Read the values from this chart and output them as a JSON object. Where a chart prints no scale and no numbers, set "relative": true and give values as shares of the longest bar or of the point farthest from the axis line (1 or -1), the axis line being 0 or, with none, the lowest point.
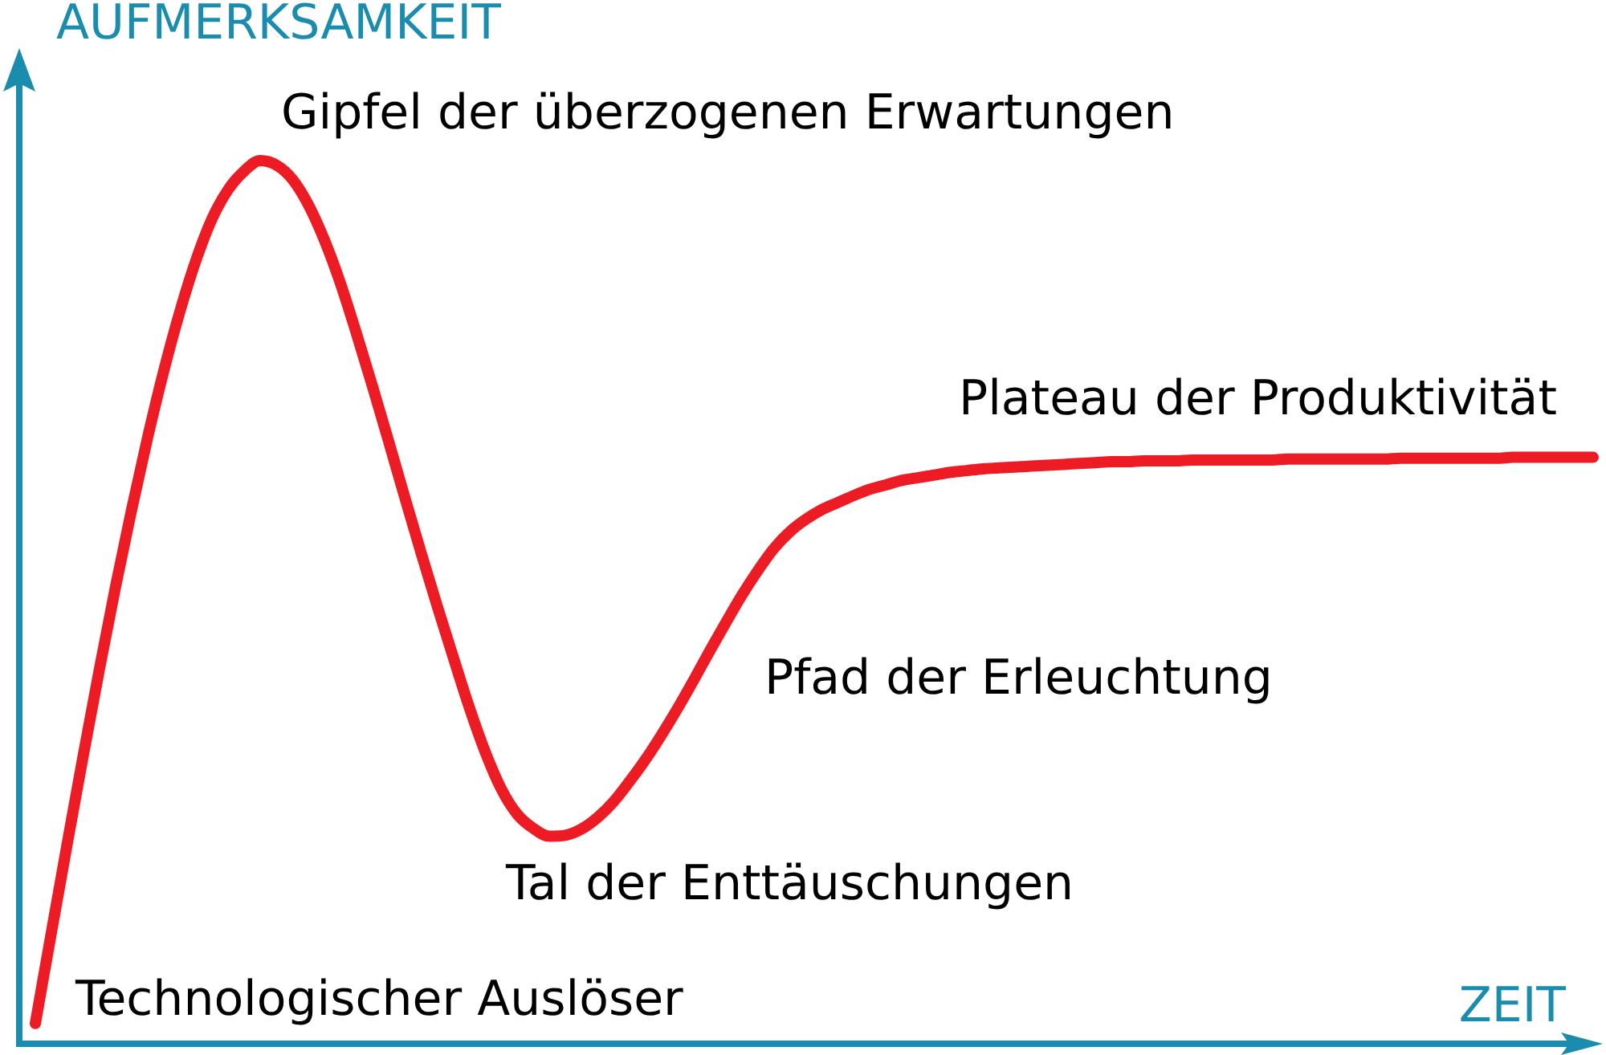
{
  "chart_data": {
    "type": "line",
    "relative": true,
    "xlabel": "ZEIT",
    "ylabel": "AUFMERKSAMKEIT",
    "annotations": [
      "Technologischer Auslöser",
      "Gipfel der überzogenen Erwartungen",
      "Tal der Enttäuschungen",
      "Pfad der Erleuchtung",
      "Plateau der Produktivität"
    ],
    "categories": [
      null,
      null,
      null,
      null,
      null,
      null,
      null,
      null,
      null,
      null,
      null,
      null,
      null,
      null,
      null,
      null,
      null,
      null,
      null,
      null,
      null,
      null,
      null,
      null,
      null,
      null,
      null,
      null,
      null,
      null,
      null,
      null,
      null,
      null,
      null,
      null,
      null,
      null,
      null,
      null,
      null,
      null,
      null,
      null,
      null,
      null,
      null,
      null,
      null,
      null,
      null,
      null,
      null,
      null,
      null,
      null,
      null,
      null,
      null,
      null,
      null,
      null,
      null,
      null,
      null,
      null,
      null,
      null,
      null,
      null,
      null,
      null,
      null,
      null,
      null,
      null,
      null,
      null,
      null,
      null,
      null,
      null,
      null,
      null,
      null,
      null,
      null,
      null,
      null,
      null,
      null,
      null,
      null,
      null,
      null,
      null,
      null,
      null
    ],
    "series": [
      {
        "color": "#ed1c24",
        "values": [
          0.023,
          0.126,
          0.228,
          0.328,
          0.425,
          0.518,
          0.605,
          0.687,
          0.762,
          0.829,
          0.887,
          0.934,
          0.967,
          0.988,
          1,
          0.995,
          0.979,
          0.95,
          0.91,
          0.861,
          0.804,
          0.744,
          0.682,
          0.619,
          0.557,
          0.497,
          0.439,
          0.382,
          0.331,
          0.289,
          0.26,
          0.244,
          0.235,
          0.236,
          0.243,
          0.256,
          0.274,
          0.297,
          0.322,
          0.35,
          0.38,
          0.412,
          0.445,
          0.477,
          0.508,
          0.536,
          0.561,
          0.58,
          0.594,
          0.605,
          0.613,
          0.621,
          0.628,
          0.633,
          0.638,
          0.641,
          0.644,
          0.647,
          0.649,
          0.651,
          0.652,
          0.653,
          0.654,
          0.655,
          0.656,
          0.657,
          0.658,
          0.659,
          0.659,
          0.66,
          0.66,
          0.66,
          0.661,
          0.661,
          0.661,
          0.661,
          0.661,
          0.661,
          0.662,
          0.662,
          0.662,
          0.662,
          0.662,
          0.662,
          0.662,
          0.663,
          0.663,
          0.663,
          0.663,
          0.663,
          0.663,
          0.663,
          0.664,
          0.664,
          0.664,
          0.664,
          0.664,
          0.664
        ]
      }
    ]
  }
}
